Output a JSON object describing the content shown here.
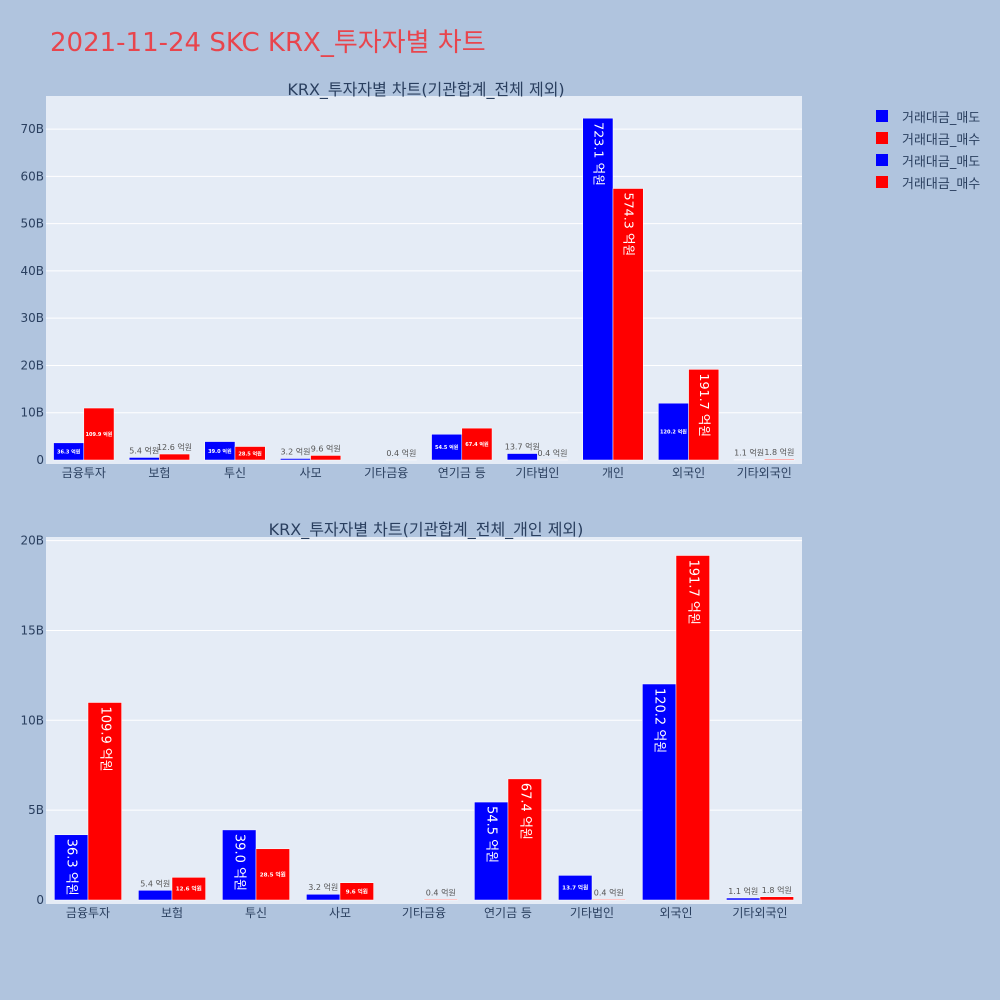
{
  "title": "2021-11-24 SKC KRX_투자자별 차트",
  "legend": [
    {
      "label": "거래대금_매도",
      "color": "#0000ff"
    },
    {
      "label": "거래대금_매수",
      "color": "#ff0000"
    },
    {
      "label": "거래대금_매도",
      "color": "#0000ff"
    },
    {
      "label": "거래대금_매수",
      "color": "#ff0000"
    }
  ],
  "chart_data": [
    {
      "type": "bar",
      "title": "KRX_투자자별 차트(기관합계_전체 제외)",
      "categories": [
        "금융투자",
        "보험",
        "투신",
        "사모",
        "기타금융",
        "연기금 등",
        "기타법인",
        "개인",
        "외국인",
        "기타외국인"
      ],
      "series": [
        {
          "name": "거래대금_매도",
          "color": "#0000ff",
          "values": [
            3.63,
            0.54,
            3.9,
            0.32,
            0,
            5.45,
            1.37,
            72.31,
            12.02,
            0.11
          ],
          "labels": [
            "36.3 억원",
            "5.4 억원",
            "39.0 억원",
            "3.2 억원",
            "",
            "54.5 억원",
            "13.7 억원",
            "723.1 억원",
            "120.2 억원",
            "1.1 억원"
          ]
        },
        {
          "name": "거래대금_매수",
          "color": "#ff0000",
          "values": [
            10.99,
            1.26,
            2.85,
            0.96,
            0.04,
            6.74,
            0.04,
            57.43,
            19.17,
            0.18
          ],
          "labels": [
            "109.9 억원",
            "12.6 억원",
            "28.5 억원",
            "9.6 억원",
            "0.4 억원",
            "67.4 억원",
            "0.4 억원",
            "574.3 억원",
            "191.7 억원",
            "1.8 억원"
          ]
        }
      ],
      "yticks": [
        "0",
        "10B",
        "20B",
        "30B",
        "40B",
        "50B",
        "60B",
        "70B"
      ],
      "ylim": [
        0,
        77
      ],
      "grid": true
    },
    {
      "type": "bar",
      "title": "KRX_투자자별 차트(기관합계_전체_개인 제외)",
      "categories": [
        "금융투자",
        "보험",
        "투신",
        "사모",
        "기타금융",
        "연기금 등",
        "기타법인",
        "외국인",
        "기타외국인"
      ],
      "series": [
        {
          "name": "거래대금_매도",
          "color": "#0000ff",
          "values": [
            3.63,
            0.54,
            3.9,
            0.32,
            0,
            5.45,
            1.37,
            12.02,
            0.11
          ],
          "labels": [
            "36.3 억원",
            "5.4 억원",
            "39.0 억원",
            "3.2 억원",
            "",
            "54.5 억원",
            "13.7 억원",
            "120.2 억원",
            "1.1 억원"
          ]
        },
        {
          "name": "거래대금_매수",
          "color": "#ff0000",
          "values": [
            10.99,
            1.26,
            2.85,
            0.96,
            0.04,
            6.74,
            0.04,
            19.17,
            0.18
          ],
          "labels": [
            "109.9 억원",
            "12.6 억원",
            "28.5 억원",
            "9.6 억원",
            "0.4 억원",
            "67.4 억원",
            "0.4 억원",
            "191.7 억원",
            "1.8 억원"
          ]
        }
      ],
      "yticks": [
        "0",
        "5B",
        "10B",
        "15B",
        "20B"
      ],
      "ylim": [
        0,
        20.2
      ],
      "grid": true
    }
  ]
}
